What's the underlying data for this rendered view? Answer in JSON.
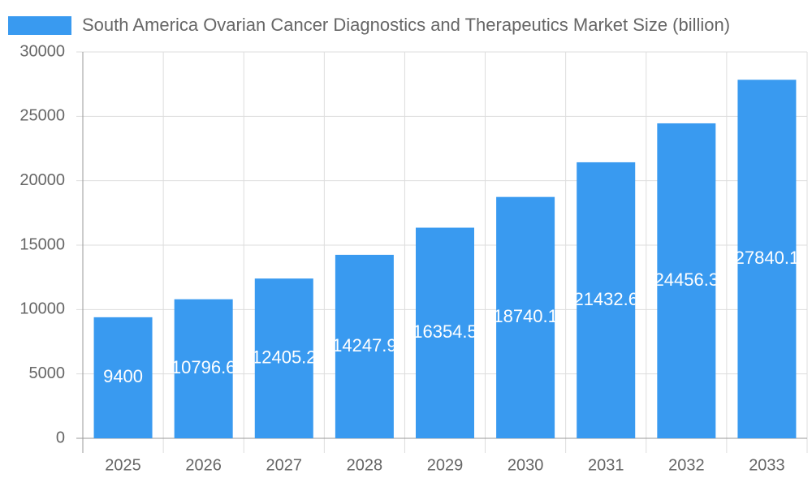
{
  "chart_data": {
    "type": "bar",
    "title": "South America Ovarian Cancer Diagnostics and Therapeutics Market Size (billion)",
    "categories": [
      "2025",
      "2026",
      "2027",
      "2028",
      "2029",
      "2030",
      "2031",
      "2032",
      "2033"
    ],
    "series": [
      {
        "name": "South America Ovarian Cancer Diagnostics and Therapeutics Market Size (billion)",
        "color": "#399af0",
        "values": [
          9400,
          10796.6,
          12405.2,
          14247.9,
          16354.5,
          18740.1,
          21432.6,
          24456.3,
          27840.1
        ]
      }
    ],
    "ylim": [
      0,
      30000
    ],
    "yticks": [
      0,
      5000,
      10000,
      15000,
      20000,
      25000,
      30000
    ],
    "grid": true,
    "legend": "top"
  }
}
